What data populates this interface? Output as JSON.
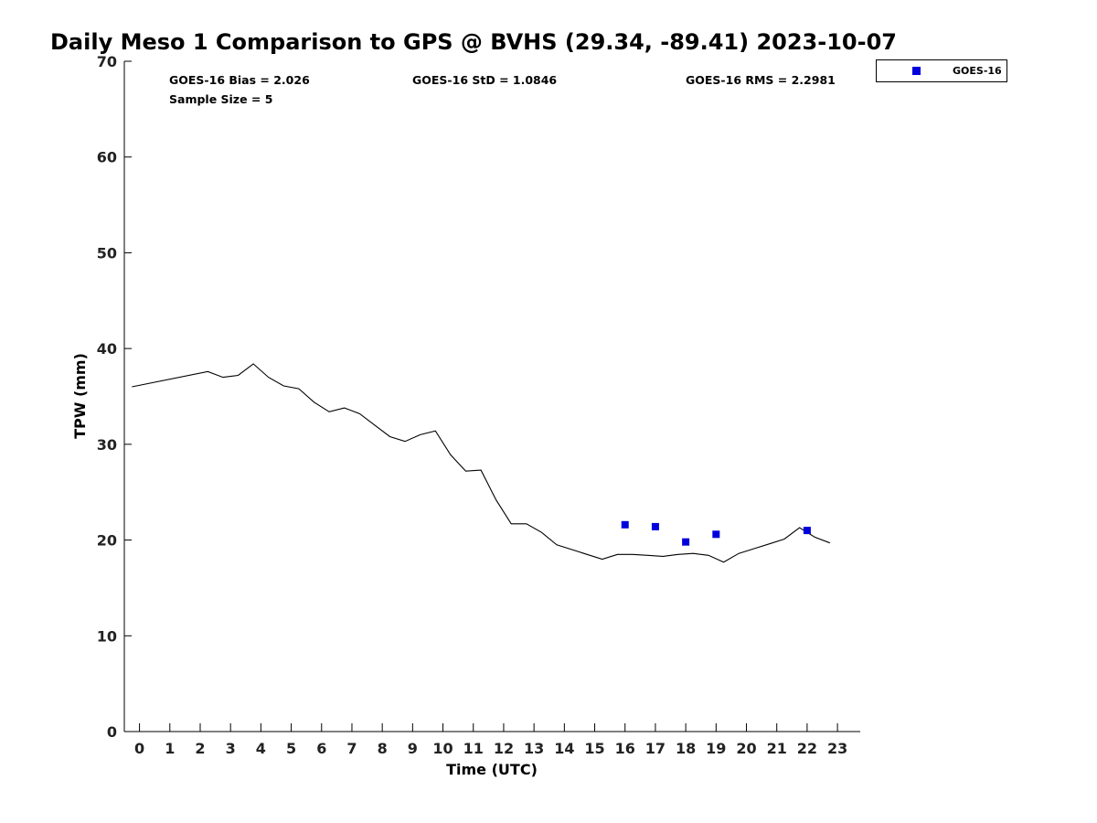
{
  "chart_data": {
    "type": "scatter",
    "title": "Daily Meso 1 Comparison to GPS @ BVHS (29.34, -89.41) 2023-10-07",
    "xlabel": "Time (UTC)",
    "ylabel": "TPW (mm)",
    "xlim": [
      -0.5,
      23.75
    ],
    "ylim": [
      0,
      70
    ],
    "xticks": [
      0,
      1,
      2,
      3,
      4,
      5,
      6,
      7,
      8,
      9,
      10,
      11,
      12,
      13,
      14,
      15,
      16,
      17,
      18,
      19,
      20,
      21,
      22,
      23
    ],
    "yticks": [
      0,
      10,
      20,
      30,
      40,
      50,
      60,
      70
    ],
    "grid": false,
    "legend_position": "outside-top-right",
    "stats": {
      "bias": "GOES-16 Bias = 2.026",
      "std": "GOES-16 StD = 1.0846",
      "rms": "GOES-16 RMS = 2.2981",
      "sample": "Sample Size = 5"
    },
    "gps_line": {
      "color": "#000000",
      "x": [
        -0.25,
        2.25,
        2.75,
        3.25,
        3.75,
        4.25,
        4.75,
        5.25,
        5.75,
        6.25,
        6.75,
        7.25,
        7.75,
        8.25,
        8.75,
        9.25,
        9.75,
        10.25,
        10.75,
        11.25,
        11.75,
        12.25,
        12.75,
        13.25,
        13.75,
        14.25,
        14.75,
        15.25,
        15.75,
        16.25,
        16.75,
        17.25,
        17.75,
        18.25,
        18.75,
        19.25,
        19.75,
        20.25,
        20.75,
        21.25,
        21.75,
        22.25,
        22.75
      ],
      "y": [
        36.0,
        37.6,
        37.0,
        37.2,
        38.4,
        37.0,
        36.1,
        35.8,
        34.4,
        33.4,
        33.8,
        33.2,
        32.0,
        30.8,
        30.3,
        31.0,
        31.4,
        28.9,
        27.2,
        27.3,
        24.2,
        21.7,
        21.7,
        20.8,
        19.5,
        19.0,
        18.5,
        18.0,
        18.5,
        18.5,
        18.4,
        18.3,
        18.5,
        18.6,
        18.4,
        17.7,
        18.6,
        19.1,
        19.6,
        20.1,
        21.3,
        20.3,
        19.7
      ]
    },
    "series": [
      {
        "name": "GOES-16",
        "color": "#0000dd",
        "x": [
          16,
          17,
          18,
          19,
          22
        ],
        "y": [
          21.6,
          21.4,
          19.8,
          20.6,
          21.0
        ]
      }
    ]
  }
}
